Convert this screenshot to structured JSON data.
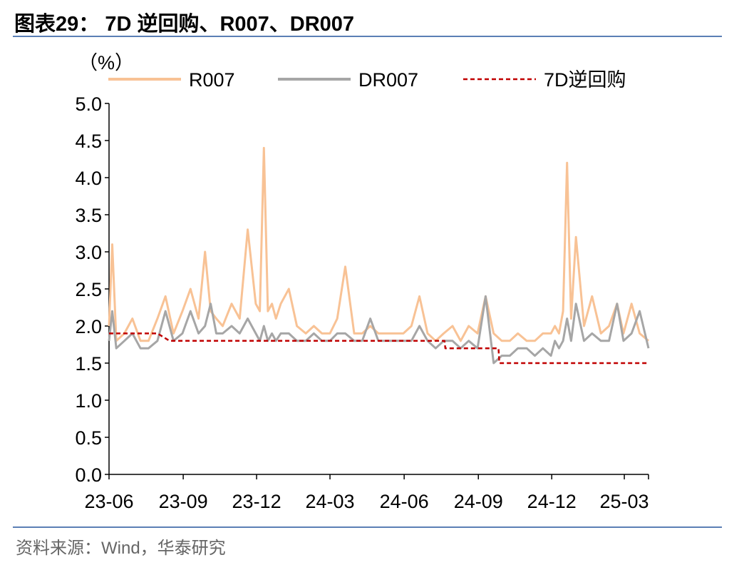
{
  "title": "图表29： 7D 逆回购、R007、DR007",
  "source": "资料来源：Wind，华泰研究",
  "chart_data": {
    "type": "line",
    "ylabel": "（%）",
    "ylim": [
      0,
      5
    ],
    "y_ticks": [
      "0.0",
      "0.5",
      "1.0",
      "1.5",
      "2.0",
      "2.5",
      "3.0",
      "3.5",
      "4.0",
      "4.5",
      "5.0"
    ],
    "x_ticks": [
      "23-06",
      "23-09",
      "23-12",
      "24-03",
      "24-06",
      "24-09",
      "24-12",
      "25-03"
    ],
    "legend_position": "top",
    "colors": {
      "R007": "#f8c295",
      "DR007": "#a6a6a6",
      "7D逆回购": "#c00000"
    },
    "series": [
      {
        "name": "R007",
        "style": "solid",
        "x": [
          "23-06-01",
          "23-06-05",
          "23-06-10",
          "23-06-20",
          "23-06-30",
          "23-07-10",
          "23-07-20",
          "23-07-31",
          "23-08-10",
          "23-08-20",
          "23-08-31",
          "23-09-10",
          "23-09-20",
          "23-09-28",
          "23-10-05",
          "23-10-12",
          "23-10-20",
          "23-10-31",
          "23-11-10",
          "23-11-20",
          "23-11-30",
          "23-12-05",
          "23-12-10",
          "23-12-15",
          "23-12-20",
          "23-12-25",
          "23-12-31",
          "24-01-10",
          "24-01-20",
          "24-01-31",
          "24-02-10",
          "24-02-20",
          "24-03-01",
          "24-03-10",
          "24-03-20",
          "24-03-31",
          "24-04-10",
          "24-04-20",
          "24-04-30",
          "24-05-10",
          "24-05-20",
          "24-05-31",
          "24-06-10",
          "24-06-20",
          "24-06-30",
          "24-07-10",
          "24-07-20",
          "24-07-31",
          "24-08-10",
          "24-08-20",
          "24-08-31",
          "24-09-10",
          "24-09-20",
          "24-09-30",
          "24-10-10",
          "24-10-20",
          "24-10-31",
          "24-11-10",
          "24-11-20",
          "24-11-30",
          "24-12-05",
          "24-12-10",
          "24-12-15",
          "24-12-20",
          "24-12-25",
          "24-12-31",
          "25-01-10",
          "25-01-20",
          "25-01-31",
          "25-02-10",
          "25-02-20",
          "25-02-28",
          "25-03-10",
          "25-03-20",
          "25-03-31"
        ],
        "values": [
          2.0,
          3.1,
          1.8,
          1.9,
          2.1,
          1.8,
          1.8,
          2.1,
          2.4,
          1.9,
          2.2,
          2.5,
          2.1,
          3.0,
          2.2,
          2.1,
          2.0,
          2.3,
          2.1,
          3.3,
          2.3,
          2.2,
          4.4,
          2.2,
          2.3,
          2.1,
          2.3,
          2.5,
          2.0,
          1.9,
          2.0,
          1.9,
          1.9,
          2.1,
          2.8,
          1.9,
          1.9,
          2.0,
          1.9,
          1.9,
          1.9,
          1.9,
          2.0,
          2.4,
          1.9,
          1.8,
          1.9,
          2.0,
          1.8,
          2.0,
          1.9,
          2.4,
          1.9,
          1.8,
          1.8,
          1.9,
          1.8,
          1.8,
          1.9,
          1.9,
          2.0,
          1.9,
          2.2,
          4.2,
          2.1,
          3.2,
          2.0,
          2.4,
          1.9,
          2.0,
          2.3,
          1.9,
          2.3,
          1.9,
          1.8
        ]
      },
      {
        "name": "DR007",
        "style": "solid",
        "x": [
          "23-06-01",
          "23-06-05",
          "23-06-10",
          "23-06-20",
          "23-06-30",
          "23-07-10",
          "23-07-20",
          "23-07-31",
          "23-08-10",
          "23-08-20",
          "23-08-31",
          "23-09-10",
          "23-09-20",
          "23-09-28",
          "23-10-05",
          "23-10-12",
          "23-10-20",
          "23-10-31",
          "23-11-10",
          "23-11-20",
          "23-11-30",
          "23-12-05",
          "23-12-10",
          "23-12-15",
          "23-12-20",
          "23-12-25",
          "23-12-31",
          "24-01-10",
          "24-01-20",
          "24-01-31",
          "24-02-10",
          "24-02-20",
          "24-03-01",
          "24-03-10",
          "24-03-20",
          "24-03-31",
          "24-04-10",
          "24-04-20",
          "24-04-30",
          "24-05-10",
          "24-05-20",
          "24-05-31",
          "24-06-10",
          "24-06-20",
          "24-06-30",
          "24-07-10",
          "24-07-20",
          "24-07-31",
          "24-08-10",
          "24-08-20",
          "24-08-31",
          "24-09-10",
          "24-09-20",
          "24-09-30",
          "24-10-10",
          "24-10-20",
          "24-10-31",
          "24-11-10",
          "24-11-20",
          "24-11-30",
          "24-12-05",
          "24-12-10",
          "24-12-15",
          "24-12-20",
          "24-12-25",
          "24-12-31",
          "25-01-10",
          "25-01-20",
          "25-01-31",
          "25-02-10",
          "25-02-20",
          "25-02-28",
          "25-03-10",
          "25-03-20",
          "25-03-31"
        ],
        "values": [
          1.8,
          2.2,
          1.7,
          1.8,
          1.9,
          1.7,
          1.7,
          1.8,
          2.2,
          1.8,
          1.9,
          2.2,
          1.9,
          2.0,
          2.3,
          1.9,
          1.9,
          2.0,
          1.9,
          2.1,
          1.9,
          1.8,
          2.0,
          1.8,
          1.9,
          1.8,
          1.9,
          1.9,
          1.8,
          1.8,
          1.9,
          1.8,
          1.8,
          1.9,
          1.9,
          1.8,
          1.8,
          2.1,
          1.8,
          1.8,
          1.8,
          1.8,
          1.8,
          2.0,
          1.8,
          1.7,
          1.8,
          1.8,
          1.7,
          1.8,
          1.7,
          2.4,
          1.5,
          1.6,
          1.6,
          1.7,
          1.7,
          1.6,
          1.7,
          1.6,
          1.8,
          1.7,
          1.8,
          2.1,
          1.8,
          2.3,
          1.8,
          1.9,
          1.8,
          1.8,
          2.3,
          1.8,
          1.9,
          2.2,
          1.7
        ]
      },
      {
        "name": "7D逆回购",
        "style": "dashed",
        "x": [
          "23-06-01",
          "23-06-13",
          "23-06-14",
          "23-07-31",
          "23-08-15",
          "24-07-21",
          "24-07-22",
          "24-09-26",
          "24-09-27",
          "25-03-31"
        ],
        "values": [
          1.9,
          1.9,
          1.9,
          1.9,
          1.8,
          1.8,
          1.7,
          1.7,
          1.5,
          1.5
        ]
      }
    ]
  }
}
